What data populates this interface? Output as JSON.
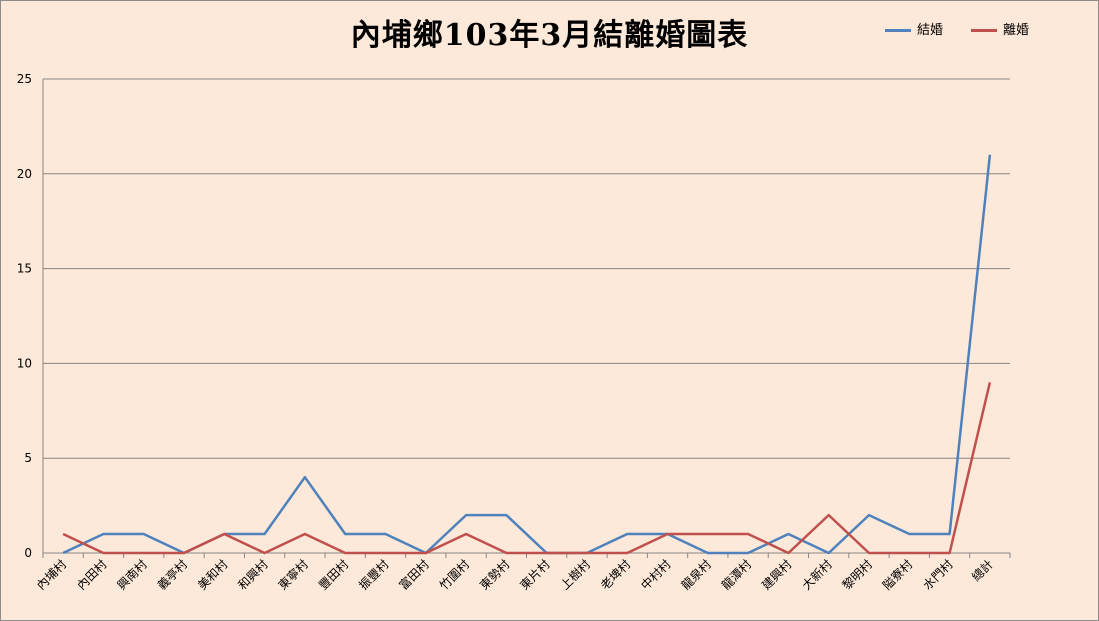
{
  "chart_data": {
    "type": "line",
    "title": "內埔鄉103年3月結離婚圖表",
    "xlabel": "",
    "ylabel": "",
    "ylim": [
      0,
      25
    ],
    "yticks": [
      "0",
      "5",
      "10",
      "15",
      "20",
      "25"
    ],
    "grid": true,
    "legend_position": "top-right",
    "categories": [
      "內埔村",
      "內田村",
      "興南村",
      "義亭村",
      "美和村",
      "和興村",
      "東寧村",
      "豐田村",
      "振豐村",
      "富田村",
      "竹圍村",
      "東勢村",
      "東片村",
      "上樹村",
      "老埤村",
      "中村村",
      "龍泉村",
      "龍潭村",
      "建興村",
      "大新村",
      "黎明村",
      "隘寮村",
      "水門村",
      "總計"
    ],
    "series": [
      {
        "name": "結婚",
        "color": "#4f81bd",
        "values": [
          0,
          1,
          1,
          0,
          1,
          1,
          4,
          1,
          1,
          0,
          2,
          2,
          0,
          0,
          1,
          1,
          0,
          0,
          1,
          0,
          2,
          1,
          1,
          21
        ]
      },
      {
        "name": "離婚",
        "color": "#c0504d",
        "values": [
          1,
          0,
          0,
          0,
          1,
          0,
          1,
          0,
          0,
          0,
          1,
          0,
          0,
          0,
          0,
          1,
          1,
          1,
          0,
          2,
          0,
          0,
          0,
          9
        ]
      }
    ]
  }
}
